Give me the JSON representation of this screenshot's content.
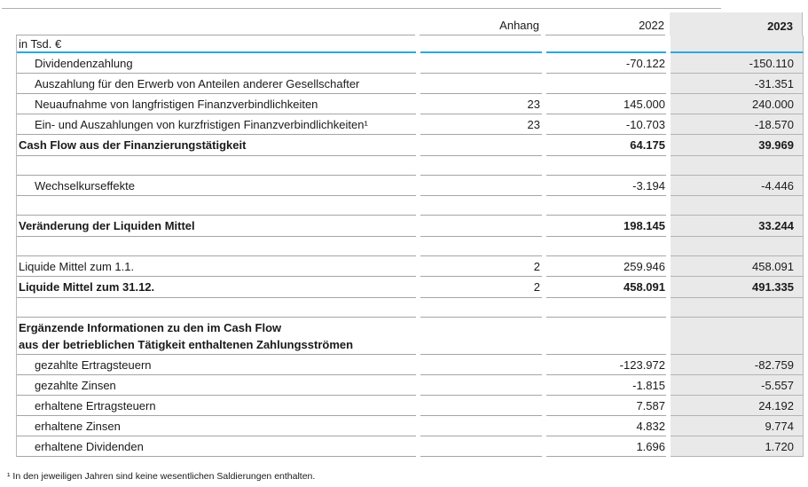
{
  "colors": {
    "accent_blue": "#2aa9e1",
    "highlight_column_bg": "#e9e9e9",
    "rule_gray": "#a5a5a5"
  },
  "table": {
    "unit_label": "in Tsd. €",
    "columns": {
      "anhang": "Anhang",
      "y2022": "2022",
      "y2023": "2023"
    },
    "rows": [
      {
        "type": "data",
        "indent": true,
        "label": "Dividendenzahlung",
        "anhang": "",
        "v2022": "-70.122",
        "v2023": "-150.110"
      },
      {
        "type": "data",
        "indent": true,
        "label": "Auszahlung für den Erwerb von Anteilen anderer Gesellschafter",
        "anhang": "",
        "v2022": "",
        "v2023": "-31.351"
      },
      {
        "type": "data",
        "indent": true,
        "label": "Neuaufnahme von langfristigen Finanzverbindlichkeiten",
        "anhang": "23",
        "v2022": "145.000",
        "v2023": "240.000"
      },
      {
        "type": "data",
        "indent": true,
        "label": "Ein- und Auszahlungen von kurzfristigen Finanzverbindlichkeiten¹",
        "anhang": "23",
        "v2022": "-10.703",
        "v2023": "-18.570"
      },
      {
        "type": "total",
        "indent": false,
        "label": "Cash Flow aus der Finanzierungstätigkeit",
        "anhang": "",
        "v2022": "64.175",
        "v2023": "39.969"
      },
      {
        "type": "spacer",
        "indent": false,
        "label": "",
        "anhang": "",
        "v2022": "",
        "v2023": ""
      },
      {
        "type": "data",
        "indent": true,
        "label": "Wechselkurseffekte",
        "anhang": "",
        "v2022": "-3.194",
        "v2023": "-4.446"
      },
      {
        "type": "spacer",
        "indent": false,
        "label": "",
        "anhang": "",
        "v2022": "",
        "v2023": ""
      },
      {
        "type": "total",
        "indent": false,
        "label": "Veränderung der Liquiden Mittel",
        "anhang": "",
        "v2022": "198.145",
        "v2023": "33.244"
      },
      {
        "type": "spacer",
        "indent": false,
        "label": "",
        "anhang": "",
        "v2022": "",
        "v2023": ""
      },
      {
        "type": "data",
        "indent": false,
        "label": "Liquide Mittel zum 1.1.",
        "anhang": "2",
        "v2022": "259.946",
        "v2023": "458.091"
      },
      {
        "type": "total",
        "indent": false,
        "label": "Liquide Mittel zum 31.12.",
        "anhang": "2",
        "v2022": "458.091",
        "v2023": "491.335"
      },
      {
        "type": "spacer",
        "indent": false,
        "label": "",
        "anhang": "",
        "v2022": "",
        "v2023": ""
      },
      {
        "type": "section",
        "indent": false,
        "label": "",
        "label_lines": [
          "Ergänzende Informationen zu den im Cash Flow",
          "aus der betrieblichen Tätigkeit enthaltenen Zahlungsströmen"
        ],
        "anhang": "",
        "v2022": "",
        "v2023": ""
      },
      {
        "type": "data",
        "indent": true,
        "label": "gezahlte Ertragsteuern",
        "anhang": "",
        "v2022": "-123.972",
        "v2023": "-82.759"
      },
      {
        "type": "data",
        "indent": true,
        "label": "gezahlte Zinsen",
        "anhang": "",
        "v2022": "-1.815",
        "v2023": "-5.557"
      },
      {
        "type": "data",
        "indent": true,
        "label": "erhaltene Ertragsteuern",
        "anhang": "",
        "v2022": "7.587",
        "v2023": "24.192"
      },
      {
        "type": "data",
        "indent": true,
        "label": "erhaltene Zinsen",
        "anhang": "",
        "v2022": "4.832",
        "v2023": "9.774"
      },
      {
        "type": "data",
        "indent": true,
        "label": "erhaltene Dividenden",
        "anhang": "",
        "v2022": "1.696",
        "v2023": "1.720"
      }
    ],
    "footnote": "¹ In den jeweiligen Jahren sind keine wesentlichen Saldierungen enthalten."
  }
}
